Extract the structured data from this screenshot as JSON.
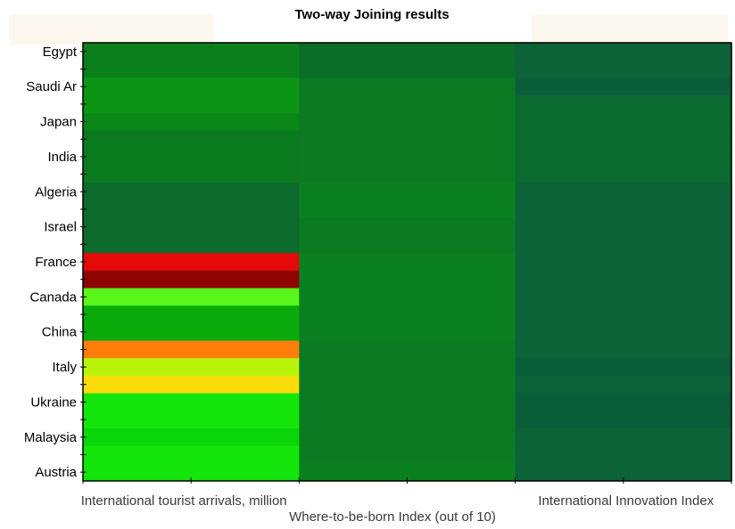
{
  "chart_data": {
    "type": "heatmap",
    "title": "Two-way Joining results",
    "xlabel": "Where-to-be-born Index (out of 10)",
    "columns": [
      "International tourist arrivals, million",
      "Where-to-be-born Index (out of 10)",
      "International Innovation Index"
    ],
    "tick_labels_x": [
      "International tourist arrivals, million",
      "International Innovation Index"
    ],
    "rows": [
      "Egypt",
      "",
      "Saudi Ar",
      "",
      "Japan",
      "",
      "India",
      "",
      "Algeria",
      "",
      "Israel",
      "",
      "France",
      "",
      "Canada",
      "",
      "China",
      "",
      "Italy",
      "",
      "Ukraine",
      "",
      "Malaysia",
      "",
      "Austria"
    ],
    "row_tick_labels": [
      "Egypt",
      "Saudi Ar",
      "Japan",
      "India",
      "Algeria",
      "Israel",
      "France",
      "Canada",
      "China",
      "Italy",
      "Ukraine",
      "Malaysia",
      "Austria"
    ],
    "cell_colors": [
      [
        "#0a7f1c",
        "#0b6e28",
        "#0b6337"
      ],
      [
        "#0a7f1c",
        "#0b6e28",
        "#0b6337"
      ],
      [
        "#0a9614",
        "#0b7a22",
        "#0b5e3a"
      ],
      [
        "#0a9614",
        "#0b7a22",
        "#0b6a30"
      ],
      [
        "#0a8718",
        "#0b7a22",
        "#0b6a30"
      ],
      [
        "#0a7a1f",
        "#0b7a22",
        "#0b6a30"
      ],
      [
        "#0a7a1f",
        "#0b7a22",
        "#0b6a30"
      ],
      [
        "#0a7a1f",
        "#0b7a22",
        "#0b6a30"
      ],
      [
        "#0b6a2c",
        "#0b8020",
        "#0b6337"
      ],
      [
        "#0b6a2c",
        "#0b8020",
        "#0b6337"
      ],
      [
        "#0b6a2c",
        "#0b7a22",
        "#0b6337"
      ],
      [
        "#0b6a2c",
        "#0b7a22",
        "#0b6337"
      ],
      [
        "#e40a0a",
        "#0b8020",
        "#0b6337"
      ],
      [
        "#8e0404",
        "#0b8020",
        "#0b6337"
      ],
      [
        "#5af51a",
        "#0b8020",
        "#0b6337"
      ],
      [
        "#0aaa0a",
        "#0b8020",
        "#0b6337"
      ],
      [
        "#0aaa0a",
        "#0b8020",
        "#0b6337"
      ],
      [
        "#ff7e0a",
        "#0b7a22",
        "#0b6337"
      ],
      [
        "#b9f50a",
        "#0b7a22",
        "#0b5e3a"
      ],
      [
        "#fadc0a",
        "#0b7a22",
        "#0b6337"
      ],
      [
        "#14e50a",
        "#0b7a22",
        "#0b5e3a"
      ],
      [
        "#14e50a",
        "#0b7a22",
        "#0b5e3a"
      ],
      [
        "#0ad60a",
        "#0b7a22",
        "#0b6337"
      ],
      [
        "#14e50a",
        "#0b7a22",
        "#0b6337"
      ],
      [
        "#14e50a",
        "#0b8020",
        "#0b6337"
      ]
    ],
    "grid": false,
    "legend": "none"
  }
}
